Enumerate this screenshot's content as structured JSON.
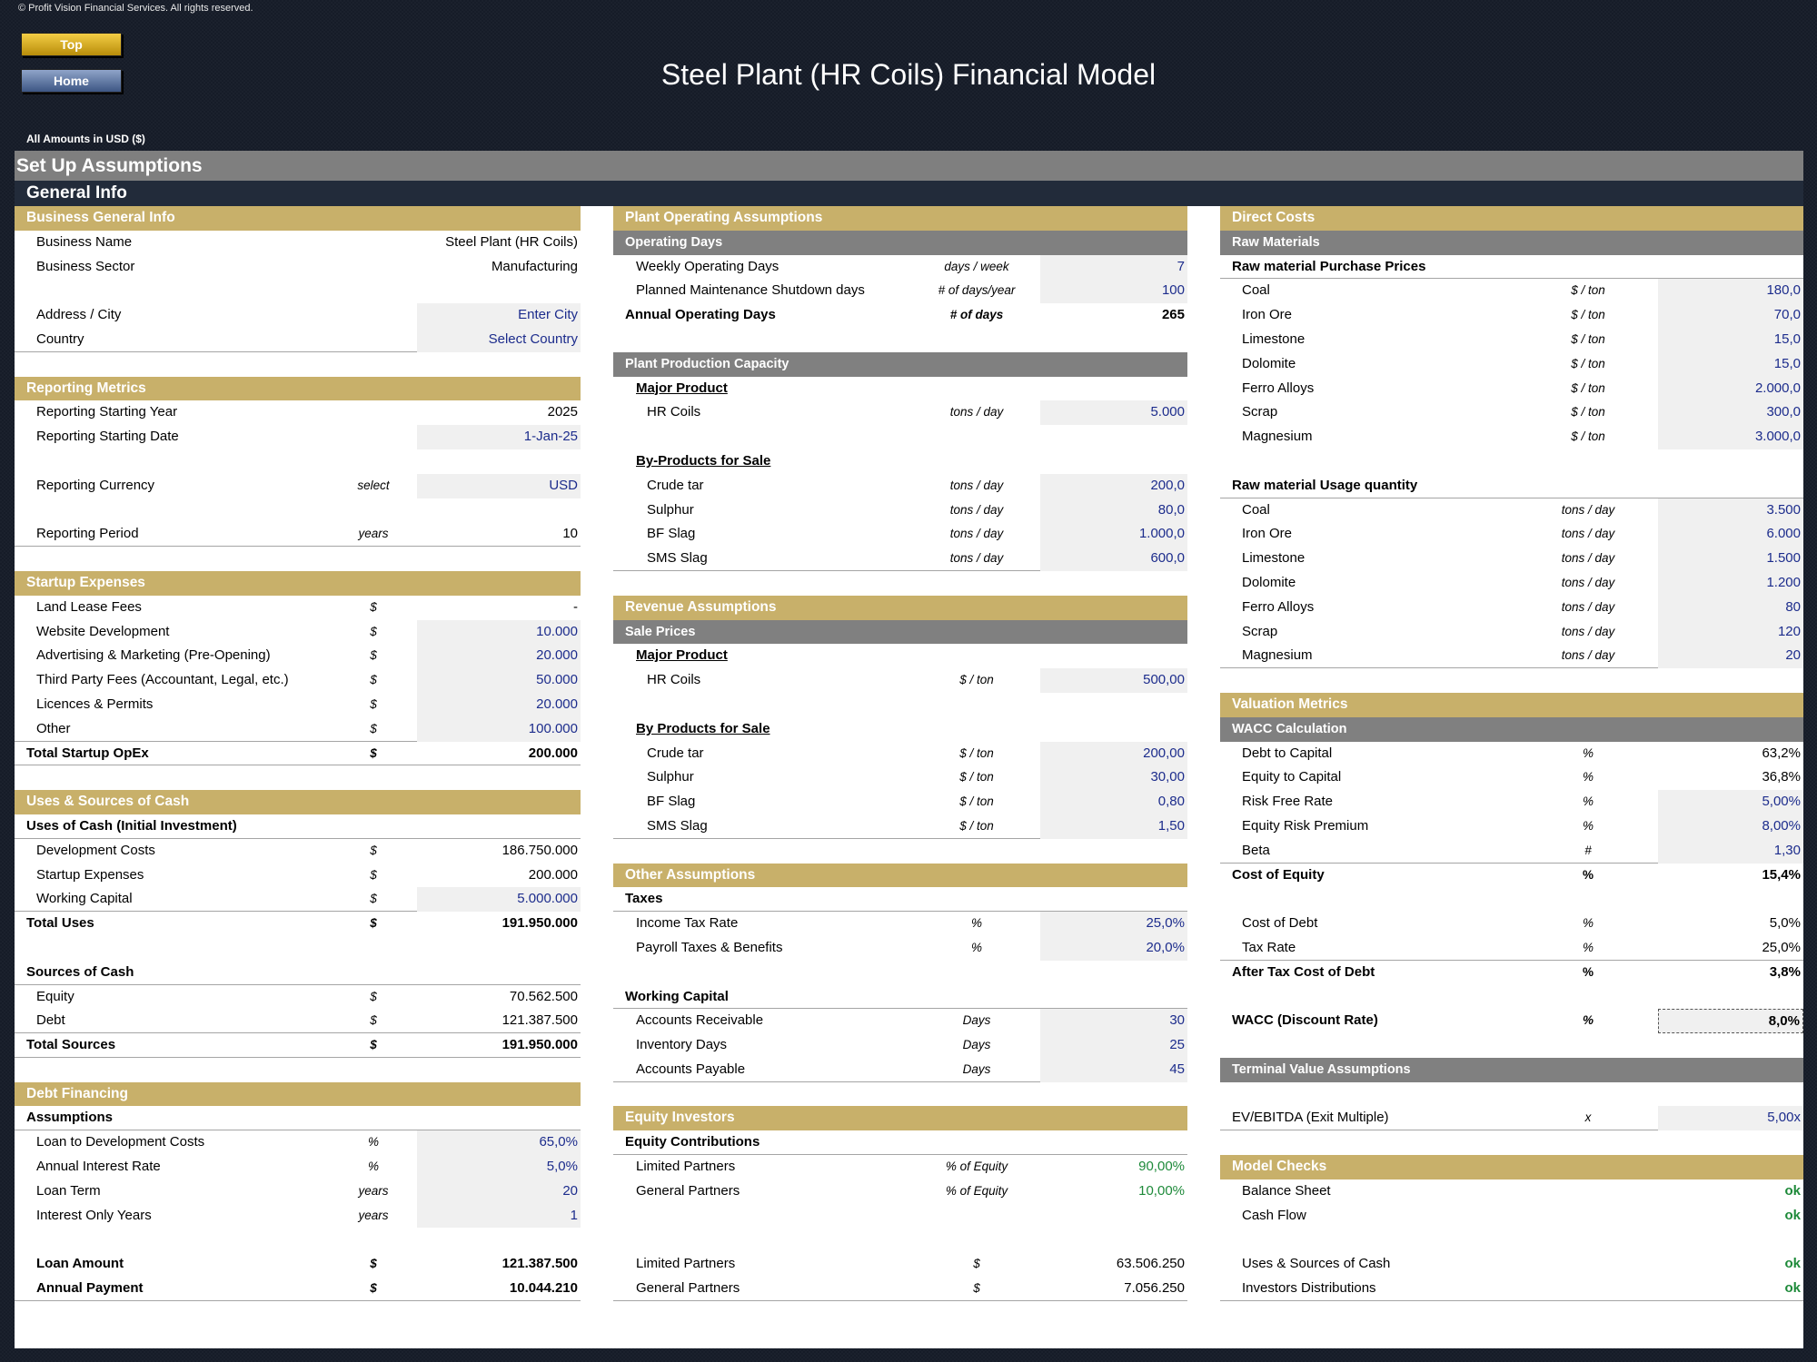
{
  "header": {
    "copyright": "© Profit Vision Financial Services. All rights reserved.",
    "top_button": "Top",
    "home_button": "Home",
    "title": "Steel Plant (HR Coils) Financial Model",
    "amounts_label": "All Amounts in  USD ($)"
  },
  "setup_title": "Set Up Assumptions",
  "general_info_title": "General Info",
  "col1": {
    "business": {
      "title": "Business General Info",
      "name_label": "Business Name",
      "name_value": "Steel Plant (HR Coils)",
      "sector_label": "Business Sector",
      "sector_value": "Manufacturing",
      "city_label": "Address / City",
      "city_value": "Enter City",
      "country_label": "Country",
      "country_value": "Select Country"
    },
    "reporting": {
      "title": "Reporting Metrics",
      "year_label": "Reporting Starting Year",
      "year_value": "2025",
      "date_label": "Reporting Starting Date",
      "date_value": "1-Jan-25",
      "currency_label": "Reporting Currency",
      "currency_unit": "select",
      "currency_value": "USD",
      "period_label": "Reporting Period",
      "period_unit": "years",
      "period_value": "10"
    },
    "startup": {
      "title": "Startup Expenses",
      "items": [
        {
          "label": "Land Lease Fees",
          "unit": "$",
          "value": "-"
        },
        {
          "label": "Website Development",
          "unit": "$",
          "value": "10.000"
        },
        {
          "label": "Advertising & Marketing (Pre-Opening)",
          "unit": "$",
          "value": "20.000"
        },
        {
          "label": "Third Party Fees (Accountant, Legal, etc.)",
          "unit": "$",
          "value": "50.000"
        },
        {
          "label": "Licences & Permits",
          "unit": "$",
          "value": "20.000"
        },
        {
          "label": "Other",
          "unit": "$",
          "value": "100.000"
        }
      ],
      "total_label": "Total Startup OpEx",
      "total_unit": "$",
      "total_value": "200.000"
    },
    "uses_sources": {
      "title": "Uses & Sources of Cash",
      "uses_header": "Uses of Cash (Initial Investment)",
      "dev_label": "Development Costs",
      "dev_unit": "$",
      "dev_value": "186.750.000",
      "startup_label": "Startup Expenses",
      "startup_unit": "$",
      "startup_value": "200.000",
      "wc_label": "Working Capital",
      "wc_unit": "$",
      "wc_value": "5.000.000",
      "total_uses_label": "Total Uses",
      "total_uses_unit": "$",
      "total_uses_value": "191.950.000",
      "sources_header": "Sources of Cash",
      "equity_label": "Equity",
      "equity_unit": "$",
      "equity_value": "70.562.500",
      "debt_label": "Debt",
      "debt_unit": "$",
      "debt_value": "121.387.500",
      "total_sources_label": "Total Sources",
      "total_sources_unit": "$",
      "total_sources_value": "191.950.000"
    },
    "debt": {
      "title": "Debt Financing",
      "assumptions_header": "Assumptions",
      "ltc_label": "Loan to Development Costs",
      "ltc_unit": "%",
      "ltc_value": "65,0%",
      "rate_label": "Annual Interest Rate",
      "rate_unit": "%",
      "rate_value": "5,0%",
      "term_label": "Loan Term",
      "term_unit": "years",
      "term_value": "20",
      "io_label": "Interest Only Years",
      "io_unit": "years",
      "io_value": "1",
      "amount_label": "Loan Amount",
      "amount_unit": "$",
      "amount_value": "121.387.500",
      "payment_label": "Annual Payment",
      "payment_unit": "$",
      "payment_value": "10.044.210"
    }
  },
  "col2": {
    "plant_ops": {
      "title": "Plant Operating Assumptions",
      "days_sub": "Operating Days",
      "weekly_label": "Weekly Operating Days",
      "weekly_unit": "days / week",
      "weekly_value": "7",
      "maint_label": "Planned Maintenance Shutdown days",
      "maint_unit": "# of days/year",
      "maint_value": "100",
      "annual_label": "Annual Operating Days",
      "annual_unit": "# of days",
      "annual_value": "265"
    },
    "capacity": {
      "sub": "Plant Production Capacity",
      "major_header": "Major Product",
      "hr_label": "HR Coils",
      "hr_unit": "tons / day",
      "hr_value": "5.000",
      "by_header": "By-Products for Sale",
      "items": [
        {
          "label": "Crude tar",
          "unit": "tons / day",
          "value": "200,0"
        },
        {
          "label": "Sulphur",
          "unit": "tons / day",
          "value": "80,0"
        },
        {
          "label": "BF Slag",
          "unit": "tons / day",
          "value": "1.000,0"
        },
        {
          "label": "SMS Slag",
          "unit": "tons / day",
          "value": "600,0"
        }
      ]
    },
    "revenue": {
      "title": "Revenue Assumptions",
      "sub": "Sale Prices",
      "major_header": "Major Product",
      "hr_label": "HR Coils",
      "hr_unit": "$ / ton",
      "hr_value": "500,00",
      "by_header": "By Products for Sale",
      "items": [
        {
          "label": "Crude tar",
          "unit": "$ / ton",
          "value": "200,00"
        },
        {
          "label": "Sulphur",
          "unit": "$ / ton",
          "value": "30,00"
        },
        {
          "label": "BF Slag",
          "unit": "$ / ton",
          "value": "0,80"
        },
        {
          "label": "SMS Slag",
          "unit": "$ / ton",
          "value": "1,50"
        }
      ]
    },
    "other": {
      "title": "Other Assumptions",
      "taxes_header": "Taxes",
      "income_label": "Income Tax Rate",
      "income_unit": "%",
      "income_value": "25,0%",
      "payroll_label": "Payroll Taxes & Benefits",
      "payroll_unit": "%",
      "payroll_value": "20,0%",
      "wc_header": "Working Capital",
      "ar_label": "Accounts Receivable",
      "ar_unit": "Days",
      "ar_value": "30",
      "inv_label": "Inventory Days",
      "inv_unit": "Days",
      "inv_value": "25",
      "ap_label": "Accounts Payable",
      "ap_unit": "Days",
      "ap_value": "45"
    },
    "equity": {
      "title": "Equity Investors",
      "contrib_header": "Equity Contributions",
      "lp_label": "Limited Partners",
      "lp_unit": "% of Equity",
      "lp_value": "90,00%",
      "gp_label": "General Partners",
      "gp_unit": "% of Equity",
      "gp_value": "10,00%",
      "lp_amt_label": "Limited Partners",
      "lp_amt_unit": "$",
      "lp_amt_value": "63.506.250",
      "gp_amt_label": "General Partners",
      "gp_amt_unit": "$",
      "gp_amt_value": "7.056.250"
    }
  },
  "col3": {
    "direct": {
      "title": "Direct Costs",
      "sub": "Raw Materials",
      "prices_header": "Raw material Purchase Prices",
      "prices": [
        {
          "label": "Coal",
          "unit": "$ / ton",
          "value": "180,0"
        },
        {
          "label": "Iron Ore",
          "unit": "$ / ton",
          "value": "70,0"
        },
        {
          "label": "Limestone",
          "unit": "$ / ton",
          "value": "15,0"
        },
        {
          "label": "Dolomite",
          "unit": "$ / ton",
          "value": "15,0"
        },
        {
          "label": "Ferro Alloys",
          "unit": "$ / ton",
          "value": "2.000,0"
        },
        {
          "label": "Scrap",
          "unit": "$ / ton",
          "value": "300,0"
        },
        {
          "label": "Magnesium",
          "unit": "$ / ton",
          "value": "3.000,0"
        }
      ],
      "usage_header": "Raw material Usage quantity",
      "usage": [
        {
          "label": "Coal",
          "unit": "tons / day",
          "value": "3.500"
        },
        {
          "label": "Iron Ore",
          "unit": "tons / day",
          "value": "6.000"
        },
        {
          "label": "Limestone",
          "unit": "tons / day",
          "value": "1.500"
        },
        {
          "label": "Dolomite",
          "unit": "tons / day",
          "value": "1.200"
        },
        {
          "label": "Ferro Alloys",
          "unit": "tons / day",
          "value": "80"
        },
        {
          "label": "Scrap",
          "unit": "tons / day",
          "value": "120"
        },
        {
          "label": "Magnesium",
          "unit": "tons / day",
          "value": "20"
        }
      ]
    },
    "valuation": {
      "title": "Valuation Metrics",
      "sub": "WACC Calculation",
      "dtc_label": "Debt to Capital",
      "dtc_unit": "%",
      "dtc_value": "63,2%",
      "etc_label": "Equity to Capital",
      "etc_unit": "%",
      "etc_value": "36,8%",
      "rfr_label": "Risk Free Rate",
      "rfr_unit": "%",
      "rfr_value": "5,00%",
      "erp_label": "Equity Risk Premium",
      "erp_unit": "%",
      "erp_value": "8,00%",
      "beta_label": "Beta",
      "beta_unit": "#",
      "beta_value": "1,30",
      "coe_label": "Cost of Equity",
      "coe_unit": "%",
      "coe_value": "15,4%",
      "cod_label": "Cost of Debt",
      "cod_unit": "%",
      "cod_value": "5,0%",
      "tax_label": "Tax Rate",
      "tax_unit": "%",
      "tax_value": "25,0%",
      "atcod_label": "After Tax Cost of Debt",
      "atcod_unit": "%",
      "atcod_value": "3,8%",
      "wacc_label": "WACC (Discount Rate)",
      "wacc_unit": "%",
      "wacc_value": "8,0%"
    },
    "terminal": {
      "sub": "Terminal Value Assumptions",
      "ev_label": "EV/EBITDA (Exit Multiple)",
      "ev_unit": "x",
      "ev_value": "5,00x"
    },
    "checks": {
      "title": "Model Checks",
      "bs_label": "Balance Sheet",
      "bs_value": "ok",
      "cf_label": "Cash Flow",
      "cf_value": "ok",
      "us_label": "Uses & Sources of Cash",
      "us_value": "ok",
      "id_label": "Investors Distributions",
      "id_value": "ok"
    }
  }
}
